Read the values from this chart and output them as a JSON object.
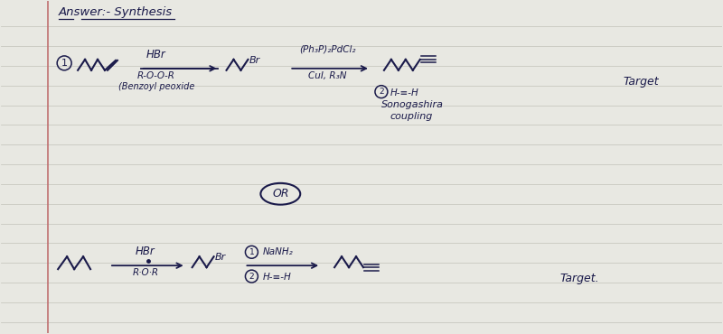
{
  "paper_color": "#e8e8e2",
  "line_color": "#c8c8c0",
  "ink_color": "#1a1a4a",
  "margin_color": "#c07070",
  "title": "Answer:- Synthesis",
  "reagent1a": "HBr",
  "reagent1b": "R-O-O-R",
  "reagent1c": "(Benzoyl peoxide",
  "reagent2a": "(Ph₃P)₂PdCl₂",
  "reagent2b": "CuI, R₃N",
  "sonogashira1": "Sonogashira",
  "sonogashira2": "coupling",
  "product_label1": "Target",
  "or_label": "OR",
  "reagent3a": "HBr",
  "reagent3b": "R·O·R",
  "reagent4a": "NaNH₂",
  "reagent4b": "H-≡-H",
  "product_label2": "Target.",
  "hc_triple": "H-≡-H",
  "figsize": [
    8.0,
    3.7
  ],
  "dpi": 100
}
